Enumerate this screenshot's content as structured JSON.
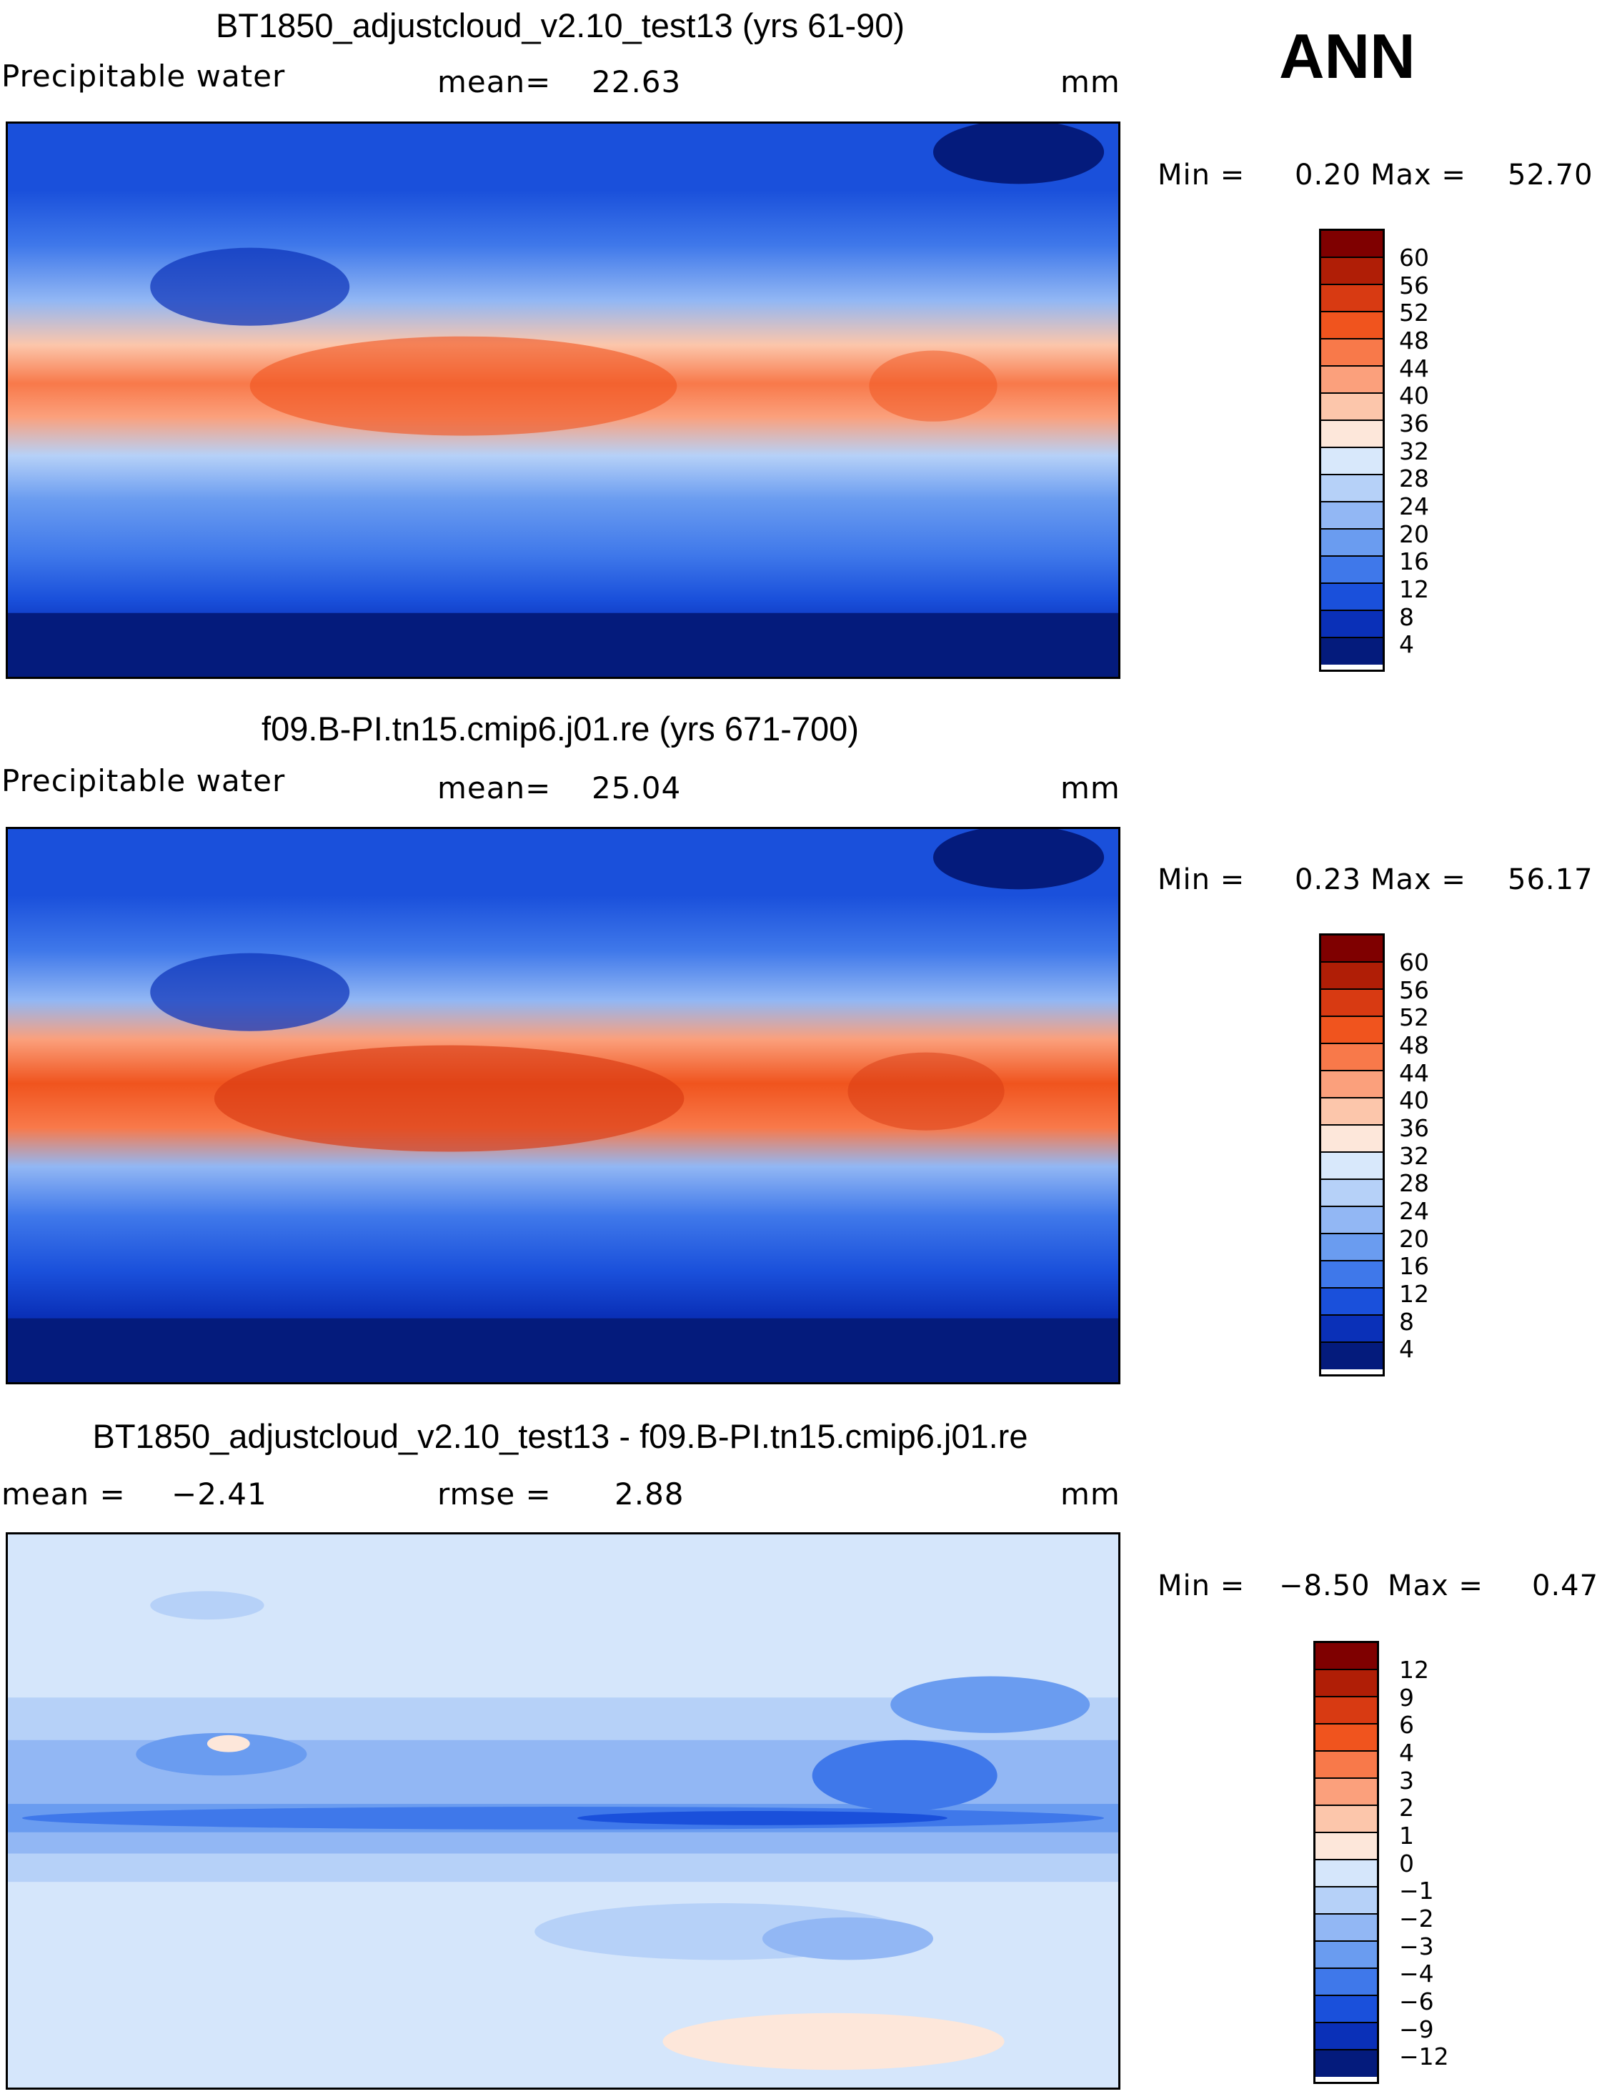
{
  "season": "ANN",
  "panels": [
    {
      "title": "BT1850_adjustcloud_v2.10_test13 (yrs 61-90)",
      "variable": "Precipitable water",
      "stat1_label": "mean=",
      "stat1_value": "22.63",
      "units": "mm",
      "min_label": "Min =",
      "min_value": "0.20",
      "max_label": "Max =",
      "max_value": "52.70",
      "colorbar_ticks": [
        "60",
        "56",
        "52",
        "48",
        "44",
        "40",
        "36",
        "32",
        "28",
        "24",
        "20",
        "16",
        "12",
        "8",
        "4"
      ]
    },
    {
      "title": "f09.B-PI.tn15.cmip6.j01.re (yrs 671-700)",
      "variable": "Precipitable water",
      "stat1_label": "mean=",
      "stat1_value": "25.04",
      "units": "mm",
      "min_label": "Min =",
      "min_value": "0.23",
      "max_label": "Max =",
      "max_value": "56.17",
      "colorbar_ticks": [
        "60",
        "56",
        "52",
        "48",
        "44",
        "40",
        "36",
        "32",
        "28",
        "24",
        "20",
        "16",
        "12",
        "8",
        "4"
      ]
    },
    {
      "title": "BT1850_adjustcloud_v2.10_test13 - f09.B-PI.tn15.cmip6.j01.re",
      "stat1_label": "mean =",
      "stat1_value": "−2.41",
      "stat2_label": "rmse =",
      "stat2_value": "2.88",
      "units": "mm",
      "min_label": "Min =",
      "min_value": "−8.50",
      "max_label": "Max =",
      "max_value": "0.47",
      "colorbar_ticks": [
        "12",
        "9",
        "6",
        "4",
        "3",
        "2",
        "1",
        "0",
        "−1",
        "−2",
        "−3",
        "−4",
        "−6",
        "−9",
        "−12"
      ]
    }
  ],
  "colors": {
    "abs_scale": [
      "#7f0000",
      "#b01e06",
      "#d83a12",
      "#f0541e",
      "#f8794a",
      "#fba07c",
      "#fcc6ab",
      "#fde7da",
      "#d8e8fb",
      "#b6d1f8",
      "#92b7f4",
      "#6a9cf0",
      "#3f78ea",
      "#1a50db",
      "#0a30b8",
      "#041b7c"
    ],
    "diff_scale": [
      "#7f0000",
      "#b01e06",
      "#d83a12",
      "#f0541e",
      "#f8794a",
      "#fba07c",
      "#fcc6ab",
      "#fde7da",
      "#d5e6fb",
      "#b6d1f8",
      "#92b7f4",
      "#6a9cf0",
      "#3f78ea",
      "#1a50db",
      "#0a30b8",
      "#041b7c"
    ],
    "coast": "#000000"
  }
}
